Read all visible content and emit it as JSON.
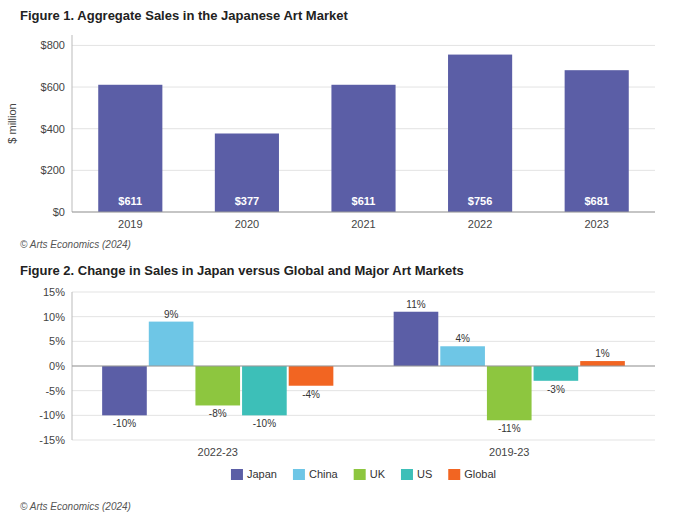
{
  "chart_data": [
    {
      "type": "bar",
      "title": "Figure 1. Aggregate Sales in the Japanese Art Market",
      "categories": [
        "2019",
        "2020",
        "2021",
        "2022",
        "2023"
      ],
      "values": [
        611,
        377,
        611,
        756,
        681
      ],
      "value_labels": [
        "$611",
        "$377",
        "$611",
        "$756",
        "$681"
      ],
      "data_labels": true,
      "color": "#5B5EA6",
      "ylabel": "$ million",
      "ylim": [
        0,
        850
      ],
      "yticks": [
        {
          "value": 0,
          "label": "$0"
        },
        {
          "value": 200,
          "label": "$200"
        },
        {
          "value": 400,
          "label": "$400"
        },
        {
          "value": 600,
          "label": "$600"
        },
        {
          "value": 800,
          "label": "$800"
        }
      ],
      "grid": true,
      "annotations": [
        "© Arts Economics (2024)"
      ]
    },
    {
      "type": "bar",
      "title": "Figure 2. Change in Sales in Japan versus Global and Major Art Markets",
      "categories": [
        "2022-23",
        "2019-23"
      ],
      "series": [
        {
          "name": "Japan",
          "color": "#5B5EA6",
          "values": [
            -10,
            11
          ],
          "value_labels": [
            "-10%",
            "11%"
          ]
        },
        {
          "name": "China",
          "color": "#6EC6E6",
          "values": [
            9,
            4
          ],
          "value_labels": [
            "9%",
            "4%"
          ]
        },
        {
          "name": "UK",
          "color": "#8DC63F",
          "values": [
            -8,
            -11
          ],
          "value_labels": [
            "-8%",
            "-11%"
          ]
        },
        {
          "name": "US",
          "color": "#3DBFB8",
          "values": [
            -10,
            -3
          ],
          "value_labels": [
            "-10%",
            "-3%"
          ]
        },
        {
          "name": "Global",
          "color": "#F26522",
          "values": [
            -4,
            1
          ],
          "value_labels": [
            "-4%",
            "1%"
          ]
        }
      ],
      "data_labels": true,
      "ylim": [
        -15,
        15
      ],
      "yticks": [
        {
          "value": -15,
          "label": "-15%"
        },
        {
          "value": -10,
          "label": "-10%"
        },
        {
          "value": -5,
          "label": "-5%"
        },
        {
          "value": 0,
          "label": "0%"
        },
        {
          "value": 5,
          "label": "5%"
        },
        {
          "value": 10,
          "label": "10%"
        },
        {
          "value": 15,
          "label": "15%"
        }
      ],
      "grid": true,
      "legend": "bottom",
      "annotations": [
        "© Arts Economics (2024)"
      ]
    }
  ]
}
